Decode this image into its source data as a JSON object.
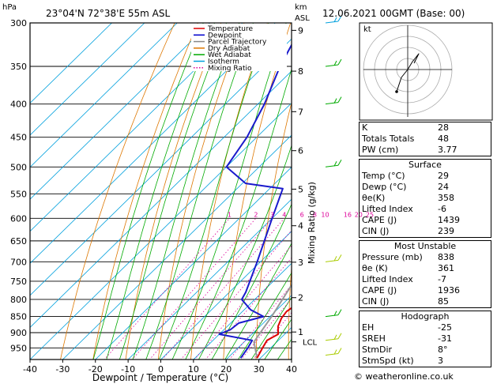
{
  "header": {
    "unit_left": "hPa",
    "location": "23°04'N  72°38'E  55m  ASL",
    "unit_right_1": "km",
    "unit_right_2": "ASL",
    "datetime": "12.06.2021  00GMT  (Base: 00)"
  },
  "legend": {
    "items": [
      {
        "label": "Temperature",
        "color": "#dd0000",
        "style": "solid"
      },
      {
        "label": "Dewpoint",
        "color": "#0000cc",
        "style": "solid"
      },
      {
        "label": "Parcel Trajectory",
        "color": "#888888",
        "style": "solid"
      },
      {
        "label": "Dry Adiabat",
        "color": "#dd7700",
        "style": "solid"
      },
      {
        "label": "Wet Adiabat",
        "color": "#00aa00",
        "style": "solid"
      },
      {
        "label": "Isotherm",
        "color": "#00a0dd",
        "style": "solid"
      },
      {
        "label": "Mixing Ratio",
        "color": "#dd0099",
        "style": "dotted"
      }
    ]
  },
  "chart_data": {
    "type": "skew-t",
    "xlabel": "Dewpoint / Temperature (°C)",
    "y2label": "Mixing Ratio (g/kg)",
    "x_ticks": [
      -40,
      -30,
      -20,
      -10,
      0,
      10,
      20,
      30,
      40
    ],
    "xlim": [
      -40,
      40
    ],
    "pressure_ticks": [
      300,
      350,
      400,
      450,
      500,
      550,
      600,
      650,
      700,
      750,
      800,
      850,
      900,
      950
    ],
    "pressure_range": [
      300,
      990
    ],
    "km_ticks": [
      {
        "label": "9",
        "p": 308
      },
      {
        "label": "8",
        "p": 356
      },
      {
        "label": "7",
        "p": 411
      },
      {
        "label": "6",
        "p": 472
      },
      {
        "label": "5",
        "p": 541
      },
      {
        "label": "4",
        "p": 616
      },
      {
        "label": "3",
        "p": 701
      },
      {
        "label": "2",
        "p": 795
      },
      {
        "label": "1",
        "p": 898
      }
    ],
    "lcl": {
      "label": "LCL",
      "p": 930
    },
    "mixing_ratio_labels": [
      "1",
      "2",
      "3",
      "4",
      "6",
      "8",
      "10",
      "16",
      "20",
      "25"
    ],
    "mixing_ratio_values": [
      1,
      2,
      3,
      4,
      6,
      8,
      10,
      16,
      20,
      25
    ],
    "temperature": [
      {
        "p": 985,
        "t": 29
      },
      {
        "p": 950,
        "t": 27.5
      },
      {
        "p": 925,
        "t": 26.5
      },
      {
        "p": 905,
        "t": 28
      },
      {
        "p": 880,
        "t": 25.5
      },
      {
        "p": 855,
        "t": 24
      },
      {
        "p": 835,
        "t": 23.5
      },
      {
        "p": 810,
        "t": 24.5
      },
      {
        "p": 780,
        "t": 22
      },
      {
        "p": 700,
        "t": 15
      },
      {
        "p": 600,
        "t": 5
      },
      {
        "p": 540,
        "t": -2.5
      },
      {
        "p": 520,
        "t": 0
      },
      {
        "p": 500,
        "t": -4
      },
      {
        "p": 450,
        "t": -10
      },
      {
        "p": 400,
        "t": -18.5
      },
      {
        "p": 370,
        "t": -24
      }
    ],
    "dewpoint": [
      {
        "p": 985,
        "t": 24
      },
      {
        "p": 950,
        "t": 23
      },
      {
        "p": 925,
        "t": 22
      },
      {
        "p": 905,
        "t": 10
      },
      {
        "p": 890,
        "t": 12
      },
      {
        "p": 870,
        "t": 12.5
      },
      {
        "p": 850,
        "t": 18
      },
      {
        "p": 830,
        "t": 12
      },
      {
        "p": 800,
        "t": 6
      },
      {
        "p": 780,
        "t": 5
      },
      {
        "p": 700,
        "t": -1
      },
      {
        "p": 600,
        "t": -10
      },
      {
        "p": 540,
        "t": -16
      },
      {
        "p": 530,
        "t": -29
      },
      {
        "p": 500,
        "t": -40
      },
      {
        "p": 450,
        "t": -43
      },
      {
        "p": 400,
        "t": -48
      },
      {
        "p": 350,
        "t": -55
      },
      {
        "p": 310,
        "t": -60
      },
      {
        "p": 300,
        "t": -60
      }
    ],
    "parcel": [
      {
        "p": 985,
        "t": 29
      },
      {
        "p": 930,
        "t": 23
      },
      {
        "p": 850,
        "t": 20.5
      },
      {
        "p": 700,
        "t": 14
      },
      {
        "p": 600,
        "t": 8
      },
      {
        "p": 500,
        "t": 0
      },
      {
        "p": 400,
        "t": -10
      },
      {
        "p": 300,
        "t": -28
      }
    ],
    "wind_barbs": [
      {
        "p": 300,
        "color": "#00a0dd"
      },
      {
        "p": 350,
        "color": "#00aa00"
      },
      {
        "p": 400,
        "color": "#00aa00"
      },
      {
        "p": 500,
        "color": "#00aa00"
      },
      {
        "p": 700,
        "color": "#aacc00"
      },
      {
        "p": 850,
        "color": "#00aa00"
      },
      {
        "p": 925,
        "color": "#aacc00"
      },
      {
        "p": 975,
        "color": "#aacc00"
      }
    ]
  },
  "hodograph": {
    "unit_label": "kt"
  },
  "indices": {
    "rows": [
      {
        "label": "K",
        "value": "28"
      },
      {
        "label": "Totals Totals",
        "value": "48"
      },
      {
        "label": "PW (cm)",
        "value": "3.77"
      }
    ]
  },
  "surface": {
    "title": "Surface",
    "rows": [
      {
        "label": "Temp (°C)",
        "value": "29"
      },
      {
        "label": "Dewp (°C)",
        "value": "24"
      },
      {
        "label": "θe(K)",
        "value": "358"
      },
      {
        "label": "Lifted Index",
        "value": "-6"
      },
      {
        "label": "CAPE (J)",
        "value": "1439"
      },
      {
        "label": "CIN (J)",
        "value": "239"
      }
    ]
  },
  "most_unstable": {
    "title": "Most Unstable",
    "rows": [
      {
        "label": "Pressure (mb)",
        "value": "838"
      },
      {
        "label": "θe (K)",
        "value": "361"
      },
      {
        "label": "Lifted Index",
        "value": "-7"
      },
      {
        "label": "CAPE (J)",
        "value": "1936"
      },
      {
        "label": "CIN (J)",
        "value": "85"
      }
    ]
  },
  "hodograph_table": {
    "title": "Hodograph",
    "rows": [
      {
        "label": "EH",
        "value": "-25"
      },
      {
        "label": "SREH",
        "value": "-31"
      },
      {
        "label": "StmDir",
        "value": "8°"
      },
      {
        "label": "StmSpd (kt)",
        "value": "3"
      }
    ]
  },
  "footer": {
    "watermark": "© weatheronline.co.uk"
  }
}
